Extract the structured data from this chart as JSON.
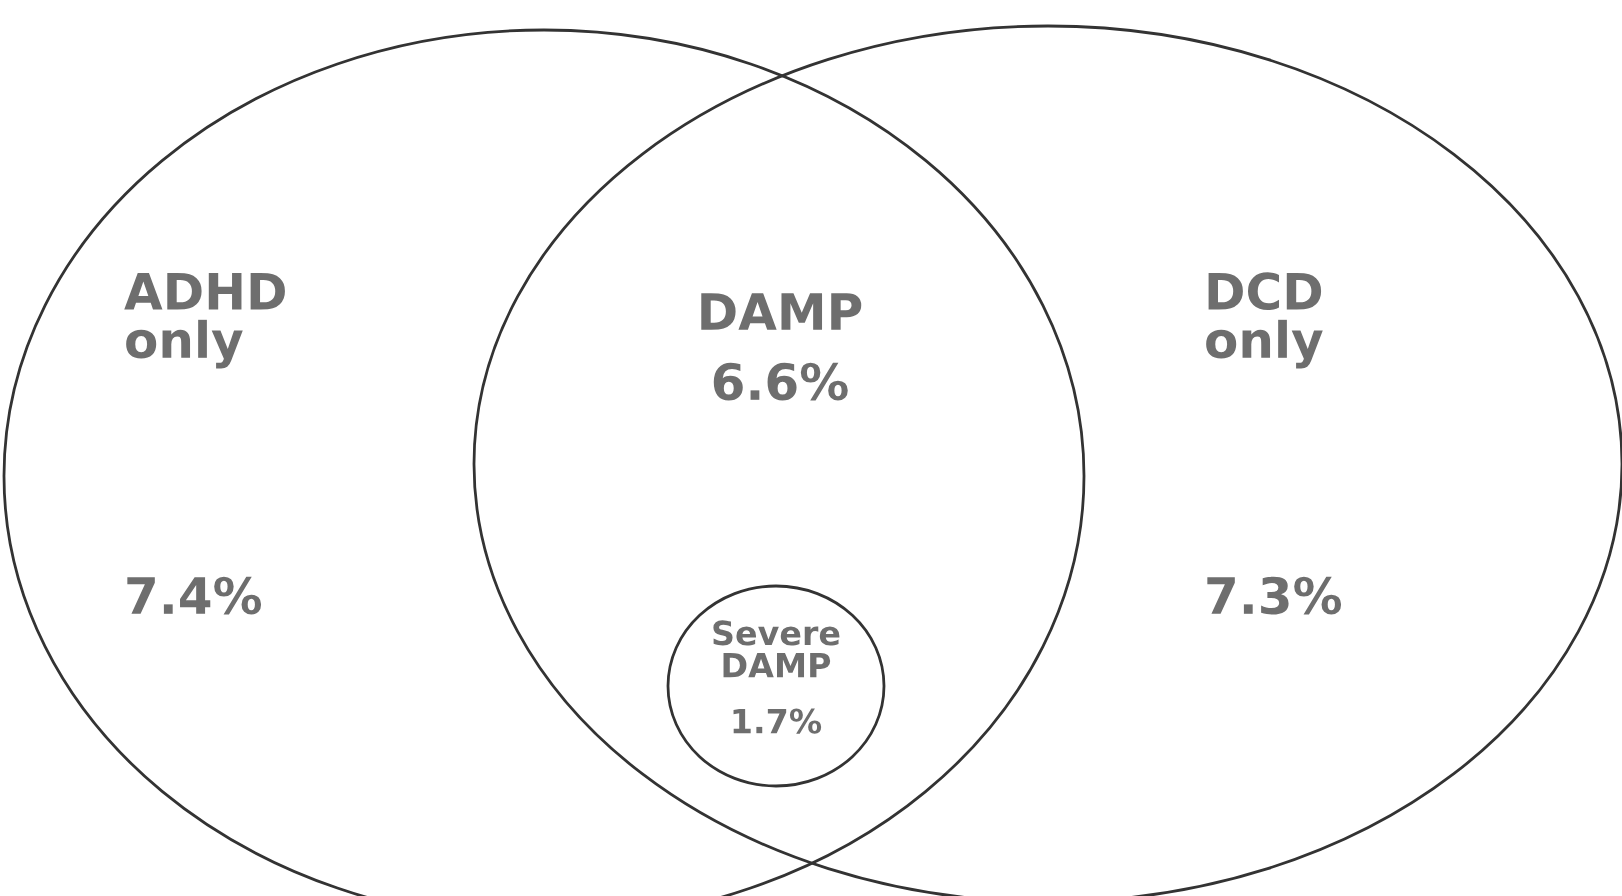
{
  "chart_data": {
    "type": "other",
    "categories": [
      "ADHD\nonly",
      "DAMP",
      "DCD\nonly",
      "Severe\nDAMP"
    ],
    "values": [
      7.4,
      6.6,
      7.3,
      1.7
    ],
    "value_labels": [
      "7.4%",
      "6.6%",
      "7.3%",
      "1.7%"
    ],
    "color": "#6e6e6e"
  }
}
